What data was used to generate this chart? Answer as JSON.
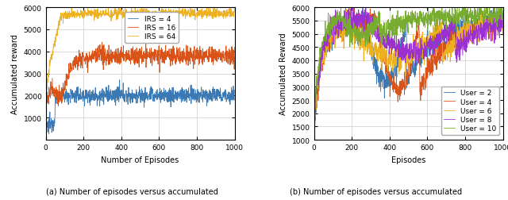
{
  "left_plot": {
    "xlabel": "Number of Episodes",
    "ylabel": "Accumulated reward",
    "xlim": [
      0,
      1000
    ],
    "ylim": [
      0,
      6000
    ],
    "yticks": [
      1000,
      2000,
      3000,
      4000,
      5000,
      6000
    ],
    "xticks": [
      0,
      200,
      400,
      600,
      800,
      1000
    ],
    "legend_labels": [
      "IRS = 4",
      "IRS = 16",
      "IRS = 64"
    ],
    "line_colors": [
      "#3b79b4",
      "#d95319",
      "#edb120"
    ]
  },
  "right_plot": {
    "xlabel": "Episodes",
    "ylabel": "Accumulated Reward",
    "xlim": [
      0,
      1000
    ],
    "ylim": [
      1000,
      6000
    ],
    "yticks": [
      1000,
      1500,
      2000,
      2500,
      3000,
      3500,
      4000,
      4500,
      5000,
      5500,
      6000
    ],
    "xticks": [
      0,
      200,
      400,
      600,
      800,
      1000
    ],
    "legend_labels": [
      "User = 2",
      "User = 4",
      "User = 6",
      "User = 8",
      "User = 10"
    ],
    "line_colors": [
      "#3b79b4",
      "#d95319",
      "#edb120",
      "#9b30d0",
      "#77ac30"
    ]
  },
  "caption": "(a) Number of episodes versus accumulated  (b) Number of episodes versus accumulated",
  "fig_width": 6.4,
  "fig_height": 2.53,
  "dpi": 100
}
